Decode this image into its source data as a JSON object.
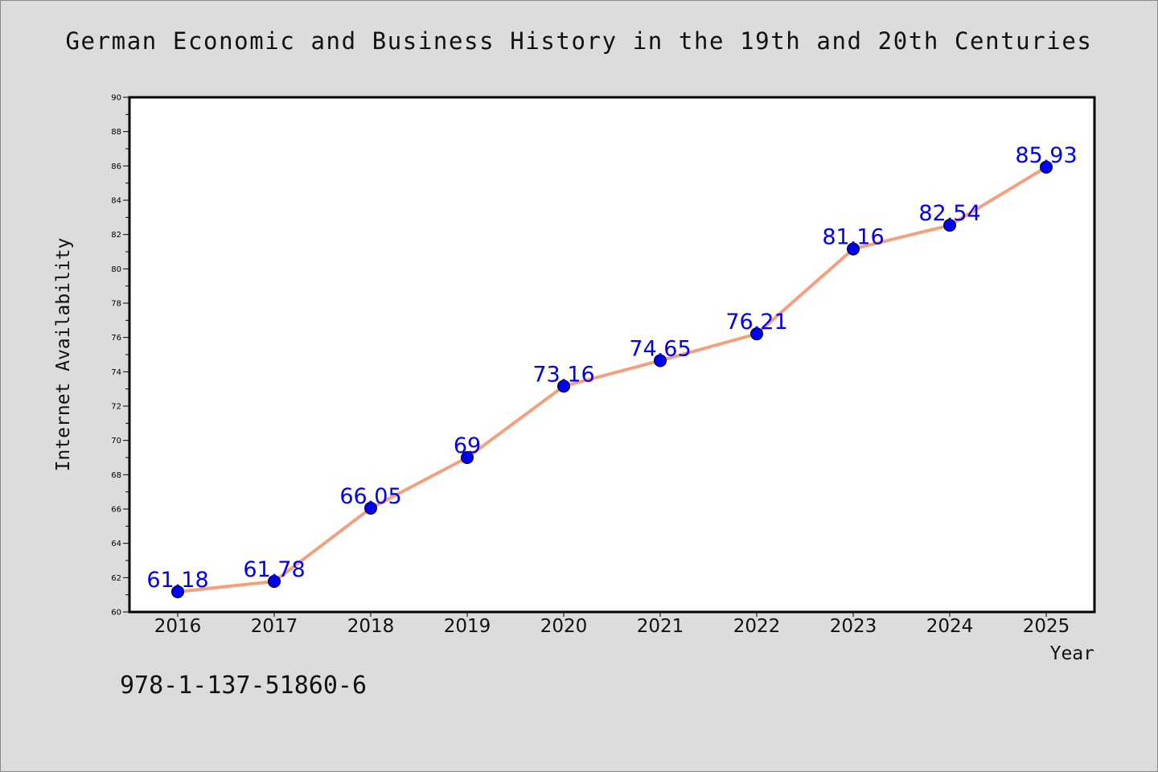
{
  "chart_data": {
    "type": "line",
    "title": "German Economic and Business History in the 19th and 20th Centuries",
    "xlabel": "Year",
    "ylabel": "Internet Availability",
    "categories": [
      "2016",
      "2017",
      "2018",
      "2019",
      "2020",
      "2021",
      "2022",
      "2023",
      "2024",
      "2025"
    ],
    "series": [
      {
        "values": [
          61.18,
          61.78,
          66.05,
          69,
          73.16,
          74.65,
          76.21,
          81.16,
          82.54,
          85.93
        ],
        "line_color": "#f4a07e",
        "marker_color": "#0000ee",
        "label_color": "#0000ee"
      }
    ],
    "ylim": [
      60,
      90
    ],
    "y_major_ticks": [
      60,
      62,
      64,
      66,
      68,
      70,
      72,
      74,
      76,
      78,
      80,
      82,
      84,
      86,
      88,
      90
    ],
    "grid": false,
    "legend": "none",
    "data_labels": true
  },
  "footer": {
    "isbn": "978-1-137-51860-6"
  }
}
